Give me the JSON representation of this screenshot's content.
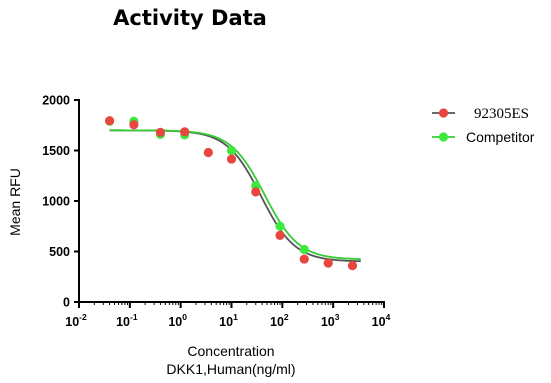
{
  "page": {
    "title": "Activity Data"
  },
  "chart_data": {
    "type": "scatter",
    "xlabel_line1": "Concentration",
    "xlabel_line2": "DKK1,Human(ng/ml)",
    "ylabel": "Mean RFU",
    "xscale": "log",
    "xlim": [
      0.01,
      10000
    ],
    "ylim": [
      0,
      2000
    ],
    "x_ticks": [
      {
        "base": "10",
        "exp": "-2",
        "value": 0.01
      },
      {
        "base": "10",
        "exp": "-1",
        "value": 0.1
      },
      {
        "base": "10",
        "exp": "0",
        "value": 1
      },
      {
        "base": "10",
        "exp": "1",
        "value": 10
      },
      {
        "base": "10",
        "exp": "2",
        "value": 100
      },
      {
        "base": "10",
        "exp": "3",
        "value": 1000
      },
      {
        "base": "10",
        "exp": "4",
        "value": 10000
      }
    ],
    "y_ticks": [
      "0",
      "500",
      "1000",
      "1500",
      "2000"
    ],
    "legend_position": "top-right",
    "series": [
      {
        "name": "92305ES",
        "color": "#e8473f",
        "curve_color": "#555555",
        "fit": {
          "bottom": 400,
          "top": 1700,
          "ec50": 38,
          "hill": 1.3
        },
        "points": [
          {
            "x": 0.04,
            "y": 1795
          },
          {
            "x": 0.12,
            "y": 1755
          },
          {
            "x": 0.4,
            "y": 1680
          },
          {
            "x": 1.2,
            "y": 1685
          },
          {
            "x": 3.5,
            "y": 1480
          },
          {
            "x": 10,
            "y": 1415
          },
          {
            "x": 30,
            "y": 1090
          },
          {
            "x": 90,
            "y": 660
          },
          {
            "x": 270,
            "y": 425
          },
          {
            "x": 800,
            "y": 385
          },
          {
            "x": 2400,
            "y": 360
          }
        ]
      },
      {
        "name": "Competitor",
        "color": "#3ee83e",
        "curve_color": "#33cc33",
        "fit": {
          "bottom": 420,
          "top": 1700,
          "ec50": 45,
          "hill": 1.3
        },
        "points": [
          {
            "x": 0.04,
            "y": 1790
          },
          {
            "x": 0.12,
            "y": 1790
          },
          {
            "x": 0.4,
            "y": 1660
          },
          {
            "x": 1.2,
            "y": 1655
          },
          {
            "x": 10,
            "y": 1500
          },
          {
            "x": 30,
            "y": 1150
          },
          {
            "x": 90,
            "y": 750
          },
          {
            "x": 270,
            "y": 520
          }
        ]
      }
    ]
  }
}
